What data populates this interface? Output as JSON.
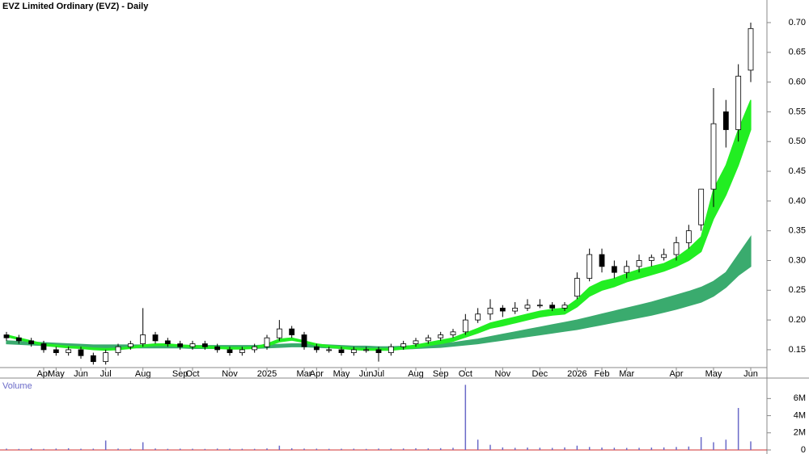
{
  "chart_data": {
    "type": "candlestick",
    "title": "EVZ Limited Ordinary (EVZ) - Daily",
    "categories": [
      null,
      null,
      null,
      "Apr",
      "May",
      null,
      "Jun",
      null,
      "Jul",
      null,
      null,
      "Aug",
      null,
      null,
      "Sep",
      "Oct",
      null,
      null,
      "Nov",
      null,
      null,
      "2025",
      null,
      null,
      "Mar",
      "Apr",
      null,
      "May",
      null,
      "Jun",
      "Jul",
      null,
      null,
      "Aug",
      null,
      "Sep",
      null,
      "Oct",
      null,
      null,
      "Nov",
      null,
      null,
      "Dec",
      null,
      null,
      "2026",
      null,
      "Feb",
      null,
      "Mar",
      null,
      null,
      null,
      "Apr",
      null,
      null,
      "May",
      null,
      null,
      "Jun"
    ],
    "open": [
      0.175,
      0.17,
      0.165,
      0.16,
      0.15,
      0.145,
      0.15,
      0.14,
      0.13,
      0.145,
      0.155,
      0.16,
      0.175,
      0.165,
      0.16,
      0.155,
      0.16,
      0.155,
      0.15,
      0.145,
      0.15,
      0.155,
      0.17,
      0.185,
      0.175,
      0.155,
      0.15,
      0.15,
      0.145,
      0.15,
      0.15,
      0.145,
      0.155,
      0.16,
      0.165,
      0.17,
      0.175,
      0.18,
      0.2,
      0.21,
      0.22,
      0.215,
      0.22,
      0.225,
      0.225,
      0.22,
      0.24,
      0.27,
      0.31,
      0.29,
      0.28,
      0.29,
      0.3,
      0.305,
      0.31,
      0.33,
      0.36,
      0.42,
      0.55,
      0.52,
      0.62
    ],
    "high": [
      0.18,
      0.175,
      0.17,
      0.165,
      0.155,
      0.155,
      0.155,
      0.145,
      0.15,
      0.16,
      0.165,
      0.22,
      0.18,
      0.17,
      0.165,
      0.165,
      0.165,
      0.16,
      0.155,
      0.155,
      0.16,
      0.175,
      0.2,
      0.19,
      0.18,
      0.16,
      0.155,
      0.155,
      0.155,
      0.155,
      0.155,
      0.16,
      0.165,
      0.17,
      0.175,
      0.18,
      0.185,
      0.21,
      0.22,
      0.235,
      0.225,
      0.23,
      0.235,
      0.235,
      0.23,
      0.23,
      0.28,
      0.32,
      0.32,
      0.3,
      0.3,
      0.31,
      0.31,
      0.32,
      0.34,
      0.36,
      0.42,
      0.59,
      0.57,
      0.63,
      0.7
    ],
    "low": [
      0.165,
      0.16,
      0.155,
      0.145,
      0.14,
      0.14,
      0.135,
      0.125,
      0.125,
      0.14,
      0.15,
      0.155,
      0.16,
      0.155,
      0.15,
      0.15,
      0.15,
      0.145,
      0.14,
      0.14,
      0.145,
      0.15,
      0.165,
      0.17,
      0.15,
      0.145,
      0.145,
      0.14,
      0.14,
      0.145,
      0.13,
      0.14,
      0.15,
      0.155,
      0.16,
      0.165,
      0.17,
      0.175,
      0.195,
      0.2,
      0.205,
      0.21,
      0.215,
      0.22,
      0.215,
      0.215,
      0.235,
      0.265,
      0.28,
      0.27,
      0.27,
      0.28,
      0.29,
      0.3,
      0.3,
      0.32,
      0.35,
      0.39,
      0.49,
      0.5,
      0.6
    ],
    "close": [
      0.17,
      0.165,
      0.16,
      0.15,
      0.145,
      0.15,
      0.14,
      0.13,
      0.145,
      0.155,
      0.16,
      0.175,
      0.165,
      0.16,
      0.155,
      0.16,
      0.155,
      0.15,
      0.145,
      0.15,
      0.155,
      0.17,
      0.185,
      0.175,
      0.155,
      0.15,
      0.15,
      0.145,
      0.15,
      0.15,
      0.145,
      0.155,
      0.16,
      0.165,
      0.17,
      0.175,
      0.18,
      0.2,
      0.21,
      0.22,
      0.215,
      0.22,
      0.225,
      0.225,
      0.22,
      0.225,
      0.27,
      0.31,
      0.29,
      0.28,
      0.29,
      0.3,
      0.305,
      0.31,
      0.33,
      0.35,
      0.42,
      0.53,
      0.52,
      0.61,
      0.69
    ],
    "bands": [
      {
        "color": "#3aab6e",
        "upper": [
          0.165,
          0.164,
          0.163,
          0.162,
          0.161,
          0.16,
          0.159,
          0.158,
          0.158,
          0.158,
          0.158,
          0.158,
          0.158,
          0.158,
          0.158,
          0.157,
          0.157,
          0.157,
          0.157,
          0.157,
          0.157,
          0.158,
          0.159,
          0.16,
          0.16,
          0.159,
          0.158,
          0.157,
          0.156,
          0.156,
          0.155,
          0.155,
          0.156,
          0.157,
          0.158,
          0.16,
          0.162,
          0.165,
          0.168,
          0.172,
          0.176,
          0.18,
          0.184,
          0.188,
          0.192,
          0.196,
          0.2,
          0.205,
          0.21,
          0.215,
          0.22,
          0.225,
          0.23,
          0.236,
          0.242,
          0.248,
          0.255,
          0.265,
          0.28,
          0.31,
          0.34
        ],
        "lower": [
          0.16,
          0.159,
          0.158,
          0.157,
          0.156,
          0.155,
          0.154,
          0.153,
          0.153,
          0.153,
          0.153,
          0.153,
          0.153,
          0.153,
          0.153,
          0.152,
          0.152,
          0.152,
          0.152,
          0.152,
          0.152,
          0.153,
          0.154,
          0.155,
          0.155,
          0.154,
          0.153,
          0.152,
          0.151,
          0.151,
          0.15,
          0.15,
          0.151,
          0.152,
          0.153,
          0.154,
          0.156,
          0.158,
          0.16,
          0.163,
          0.166,
          0.169,
          0.172,
          0.175,
          0.178,
          0.181,
          0.184,
          0.188,
          0.192,
          0.196,
          0.2,
          0.204,
          0.208,
          0.213,
          0.218,
          0.224,
          0.23,
          0.24,
          0.255,
          0.275,
          0.29
        ]
      },
      {
        "color": "#22ee22",
        "upper": [
          0.175,
          0.17,
          0.165,
          0.16,
          0.158,
          0.156,
          0.155,
          0.153,
          0.152,
          0.153,
          0.155,
          0.158,
          0.16,
          0.16,
          0.158,
          0.157,
          0.156,
          0.155,
          0.154,
          0.154,
          0.155,
          0.16,
          0.168,
          0.17,
          0.165,
          0.16,
          0.157,
          0.155,
          0.153,
          0.152,
          0.152,
          0.152,
          0.155,
          0.158,
          0.162,
          0.166,
          0.17,
          0.178,
          0.186,
          0.195,
          0.2,
          0.205,
          0.21,
          0.215,
          0.218,
          0.22,
          0.235,
          0.255,
          0.265,
          0.27,
          0.278,
          0.285,
          0.29,
          0.295,
          0.305,
          0.32,
          0.34,
          0.42,
          0.46,
          0.52,
          0.57
        ],
        "lower": [
          0.172,
          0.167,
          0.162,
          0.157,
          0.155,
          0.153,
          0.152,
          0.15,
          0.149,
          0.15,
          0.152,
          0.155,
          0.157,
          0.157,
          0.155,
          0.154,
          0.153,
          0.152,
          0.151,
          0.151,
          0.152,
          0.156,
          0.163,
          0.166,
          0.162,
          0.157,
          0.154,
          0.152,
          0.15,
          0.149,
          0.149,
          0.149,
          0.151,
          0.153,
          0.157,
          0.16,
          0.164,
          0.171,
          0.178,
          0.186,
          0.19,
          0.195,
          0.2,
          0.205,
          0.208,
          0.21,
          0.222,
          0.24,
          0.25,
          0.256,
          0.264,
          0.27,
          0.276,
          0.282,
          0.29,
          0.3,
          0.315,
          0.37,
          0.41,
          0.46,
          0.52
        ]
      }
    ],
    "ylim": [
      0.12,
      0.738
    ],
    "yticks": [
      0.15,
      {
        "value": 0.2,
        "label": "0.20"
      },
      0.25,
      {
        "value": 0.3,
        "label": "0.30"
      },
      0.35,
      {
        "value": 0.4,
        "label": "0.40"
      },
      0.45,
      {
        "value": 0.5,
        "label": "0.50"
      },
      0.55,
      {
        "value": 0.6,
        "label": "0.60"
      },
      0.65,
      {
        "value": 0.7,
        "label": "0.70"
      }
    ],
    "volume_title": "Volume",
    "volume_color": "#6a6ac8",
    "volume": [
      150000,
      120000,
      180000,
      130000,
      160000,
      200000,
      140000,
      150000,
      1100000,
      160000,
      140000,
      900000,
      170000,
      130000,
      150000,
      140000,
      120000,
      160000,
      150000,
      140000,
      130000,
      180000,
      500000,
      200000,
      160000,
      150000,
      130000,
      140000,
      150000,
      120000,
      160000,
      150000,
      170000,
      200000,
      180000,
      210000,
      250000,
      7600000,
      1200000,
      600000,
      300000,
      250000,
      280000,
      260000,
      240000,
      300000,
      500000,
      350000,
      280000,
      260000,
      240000,
      250000,
      280000,
      300000,
      350000,
      400000,
      1500000,
      900000,
      1200000,
      4900000,
      1000000
    ],
    "volume_ylim": [
      0,
      8200000
    ],
    "volume_yticks": [
      0,
      {
        "value": 2000000,
        "label": "2M"
      },
      {
        "value": 4000000,
        "label": "4M"
      },
      {
        "value": 6000000,
        "label": "6M"
      }
    ]
  }
}
